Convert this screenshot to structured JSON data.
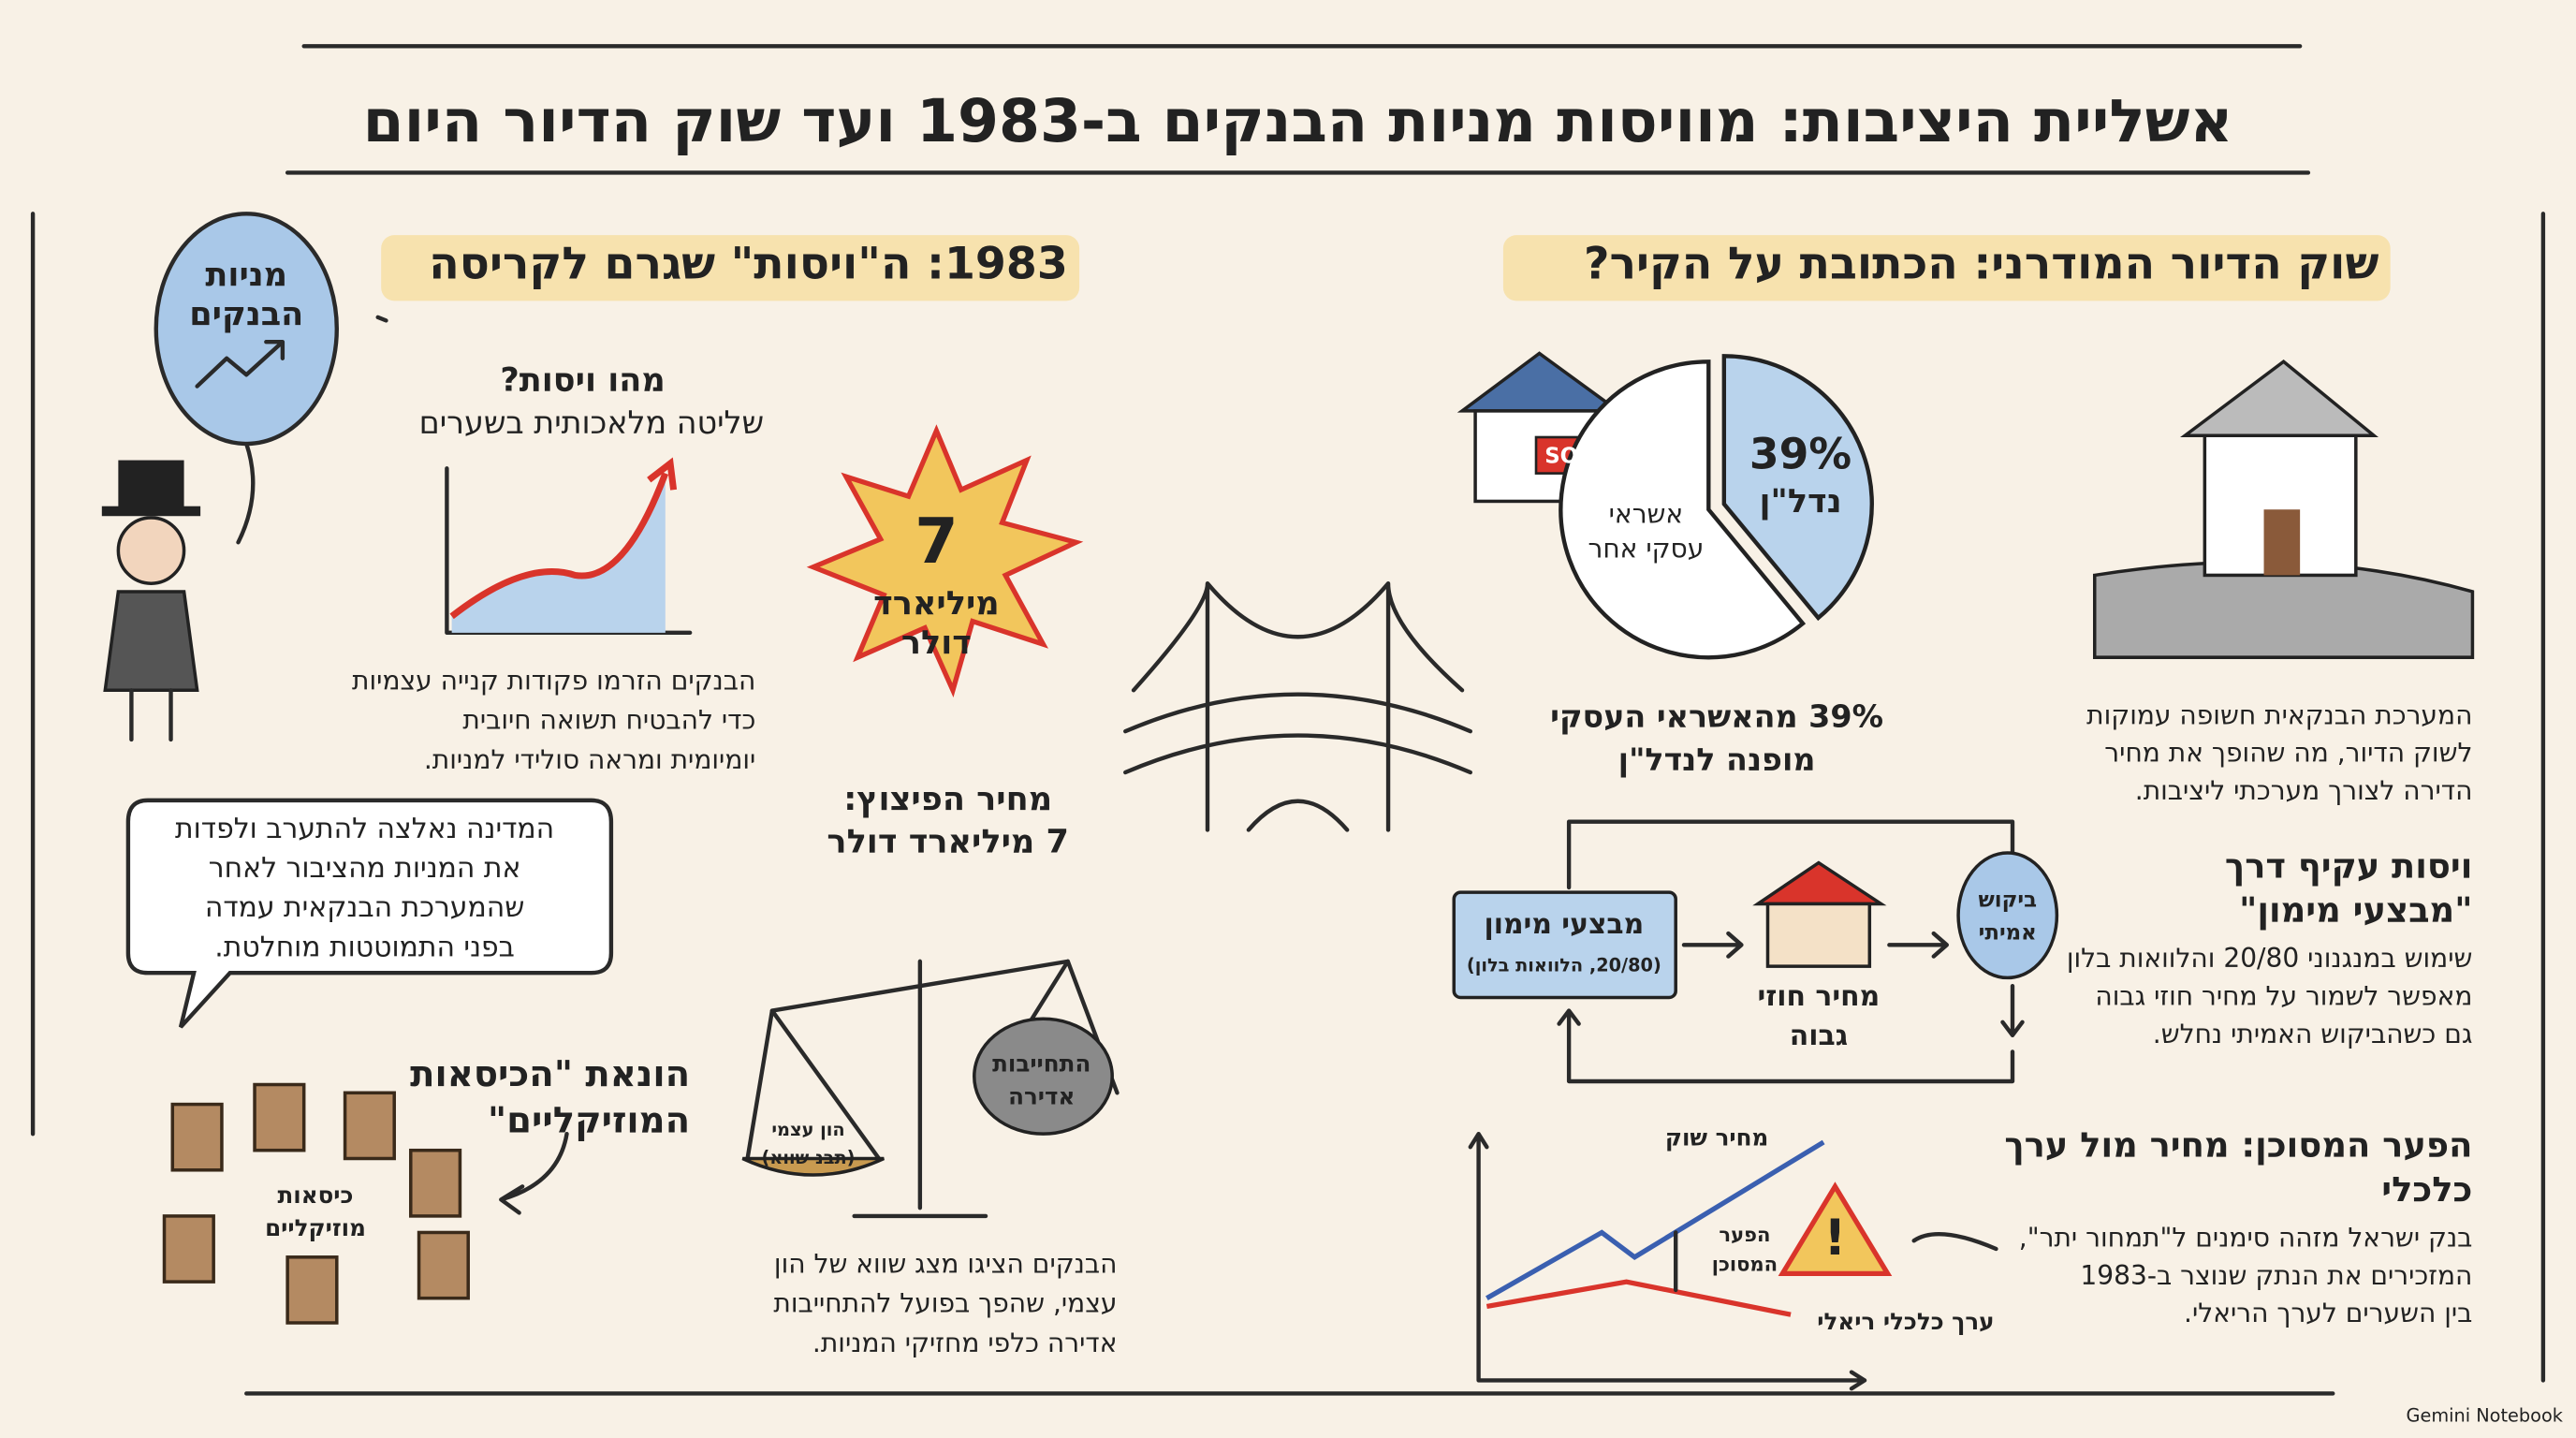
{
  "header": {
    "title": "אשליית היציבות: מוויסות מניות הבנקים ב-1983 ועד שוק הדיור היום"
  },
  "left": {
    "heading": "1983: ה\"ויסות\" שגרם לקריסה",
    "balloon": [
      "מניות",
      "הבנקים"
    ],
    "what": {
      "question": "מהו ויסות?",
      "answer": "שליטה מלאכותית בשערים"
    },
    "orders": [
      "הבנקים הזרמו פקודות קנייה עצמיות",
      "כדי להבטיח תשואה חיובית",
      "יומיומית ומראה סולידי למניות."
    ],
    "explosion": {
      "number": 7,
      "unit": [
        "מיליארד",
        "דולר"
      ]
    },
    "cost": [
      "מחיר הפיצוץ:",
      "7 מיליארד דולר"
    ],
    "bubble": [
      "המדינה נאלצה להתערב ולפדות",
      "את המניות מהציבור לאחר",
      "שהמערכת הבנקאית עמדה",
      "בפני התמוטטות מוחלטת."
    ],
    "chairs": {
      "heading": [
        "הונאת \"הכיסאות",
        "המוזיקליים\""
      ],
      "label": [
        "כיסאות",
        "מוזיקליים"
      ]
    },
    "scale": {
      "liability": [
        "התחייבות",
        "אדירה"
      ],
      "equity": [
        "הון עצמי",
        "(תבנ שווא)"
      ],
      "text": [
        "הבנקים הציגו מצג שווא של הון",
        "עצמי, שהפך בפועל להתחייבות",
        "אדירה כלפי מחזיקי המניות."
      ]
    }
  },
  "right": {
    "heading": "שוק הדיור המודרני: הכתובת על הקיר?",
    "sold": "SOLD",
    "pie": {
      "value": 39,
      "label": "39%",
      "name": "נדל\"ן",
      "other": [
        "אשראי",
        "עסקי אחר"
      ]
    },
    "pie_caption": [
      "39% מהאשראי העסקי",
      "מופנה לנדל\"ן"
    ],
    "exposure": [
      "המערכת הבנקאית חשופה עמוקות",
      "לשוק הדיור, מה שהופך את מחיר",
      "הדירה לצורך מערכתי ליציבות."
    ],
    "indirect": {
      "heading": [
        "ויסות עקיף דרך",
        "\"מבצעי מימון\""
      ],
      "text": [
        "שימוש במנגנוני 20/80 והלוואות בלון",
        "מאפשר לשמור על מחיר חוזי גבוה",
        "גם כשהביקוש האמיתי נחלש."
      ]
    },
    "flow": {
      "box": "מבצעי מימון",
      "box_note": "(20/80, הלוואות בלון)",
      "price": [
        "מחיר חוזי",
        "גבוה"
      ],
      "demand": [
        "ביקוש",
        "אמיתי"
      ]
    },
    "gap": {
      "heading": [
        "הפער המסוכן: מחיר מול ערך",
        "כלכלי"
      ],
      "text": [
        "בנק ישראל מזהה סימנים ל\"תמחור יתר\",",
        "המזכירים את הנתק שנוצר ב-1983",
        "בין השערים לערך הריאלי."
      ],
      "market": "מחיר שוק",
      "gap_label": [
        "הפער",
        "המסוכן"
      ],
      "real": "ערך כלכלי ריאלי"
    }
  },
  "footer": "Gemini Notebook"
}
